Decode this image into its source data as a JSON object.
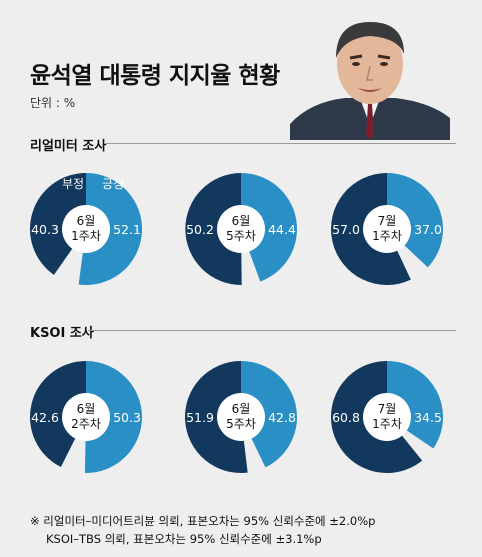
{
  "title": "윤석열 대통령 지지율 현황",
  "unit": "단위 : %",
  "legend": {
    "negative": "부정",
    "positive": "긍정"
  },
  "colors": {
    "negative": "#12385e",
    "positive": "#2a8fc4",
    "center": "#ffffff",
    "background": "#eeeeee"
  },
  "chart_data": [
    {
      "type": "pie",
      "section": "리얼미터 조사",
      "categories": [
        "6월 1주차",
        "6월 5주차",
        "7월 1주차"
      ],
      "center_labels": [
        [
          "6월",
          "1주차"
        ],
        [
          "6월",
          "5주차"
        ],
        [
          "7월",
          "1주차"
        ]
      ],
      "series": [
        {
          "name": "부정",
          "values": [
            40.3,
            50.2,
            57.0
          ],
          "labels": [
            "40.3",
            "50.2",
            "57.0"
          ]
        },
        {
          "name": "긍정",
          "values": [
            52.1,
            44.4,
            37.0
          ],
          "labels": [
            "52.1",
            "44.4",
            "37.0"
          ]
        }
      ]
    },
    {
      "type": "pie",
      "section": "KSOI 조사",
      "categories": [
        "6월 2주차",
        "6월 5주차",
        "7월 1주차"
      ],
      "center_labels": [
        [
          "6월",
          "2주차"
        ],
        [
          "6월",
          "5주차"
        ],
        [
          "7월",
          "1주차"
        ]
      ],
      "series": [
        {
          "name": "부정",
          "values": [
            42.6,
            51.9,
            60.8
          ],
          "labels": [
            "42.6",
            "51.9",
            "60.8"
          ]
        },
        {
          "name": "긍정",
          "values": [
            50.3,
            42.8,
            34.5
          ],
          "labels": [
            "50.3",
            "42.8",
            "34.5"
          ]
        }
      ]
    }
  ],
  "footnote": {
    "line1": "※ 리얼미터–미디어트리뷴 의뢰, 표본오차는 95% 신뢰수준에 ±2.0%p",
    "line2": "KSOI–TBS 의뢰, 표본오차는 95% 신뢰수준에 ±3.1%p"
  }
}
